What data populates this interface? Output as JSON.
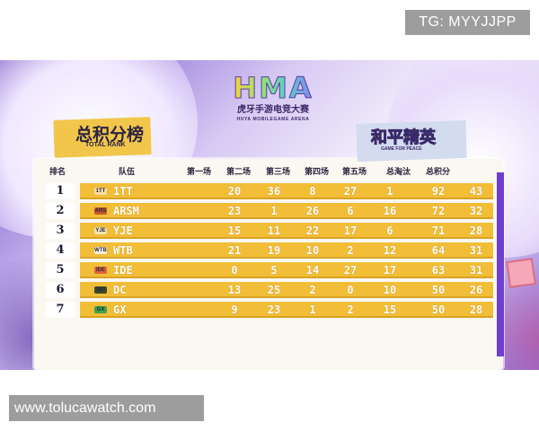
{
  "watermark": {
    "tg": "TG: MYYJJPP",
    "url": "www.tolucawatch.com"
  },
  "event": {
    "logo_mark": "HMA",
    "name_cn": "虎牙手游电竞大赛",
    "name_en": "HUYA MOBILEGAME ARENA"
  },
  "title": {
    "cn": "总积分榜",
    "en": "TOTAL RANK"
  },
  "game_badge": {
    "cn": "和平精英",
    "en": "GAME FOR PEACE"
  },
  "columns": [
    "排名",
    "队伍",
    "第一场",
    "第二场",
    "第三场",
    "第四场",
    "第五场",
    "总淘汰",
    "总积分"
  ],
  "rows": [
    {
      "rank": "1",
      "team": "1TT",
      "logo": "1TT",
      "logo_color": "#f6dca0",
      "g1": "20",
      "g2": "36",
      "g3": "8",
      "g4": "27",
      "g5": "1",
      "kills": "92",
      "total": "43"
    },
    {
      "rank": "2",
      "team": "ARSM",
      "logo": "ARS",
      "logo_color": "#c45a2a",
      "g1": "23",
      "g2": "1",
      "g3": "26",
      "g4": "6",
      "g5": "16",
      "kills": "72",
      "total": "32"
    },
    {
      "rank": "3",
      "team": "YJE",
      "logo": "YJE",
      "logo_color": "#f1e3b0",
      "g1": "15",
      "g2": "11",
      "g3": "22",
      "g4": "17",
      "g5": "6",
      "kills": "71",
      "total": "28"
    },
    {
      "rank": "4",
      "team": "WTB",
      "logo": "WTB",
      "logo_color": "#f7f1de",
      "g1": "21",
      "g2": "19",
      "g3": "10",
      "g4": "2",
      "g5": "12",
      "kills": "64",
      "total": "31"
    },
    {
      "rank": "5",
      "team": "IDE",
      "logo": "IDE",
      "logo_color": "#e0633a",
      "g1": "0",
      "g2": "5",
      "g3": "14",
      "g4": "27",
      "g5": "17",
      "kills": "63",
      "total": "31"
    },
    {
      "rank": "6",
      "team": "DC",
      "logo": "DC",
      "logo_color": "#3a4a2a",
      "g1": "13",
      "g2": "25",
      "g3": "2",
      "g4": "0",
      "g5": "10",
      "kills": "50",
      "total": "26"
    },
    {
      "rank": "7",
      "team": "GX",
      "logo": "GX",
      "logo_color": "#3fa24a",
      "g1": "9",
      "g2": "23",
      "g3": "1",
      "g4": "2",
      "g5": "15",
      "kills": "50",
      "total": "28"
    }
  ]
}
